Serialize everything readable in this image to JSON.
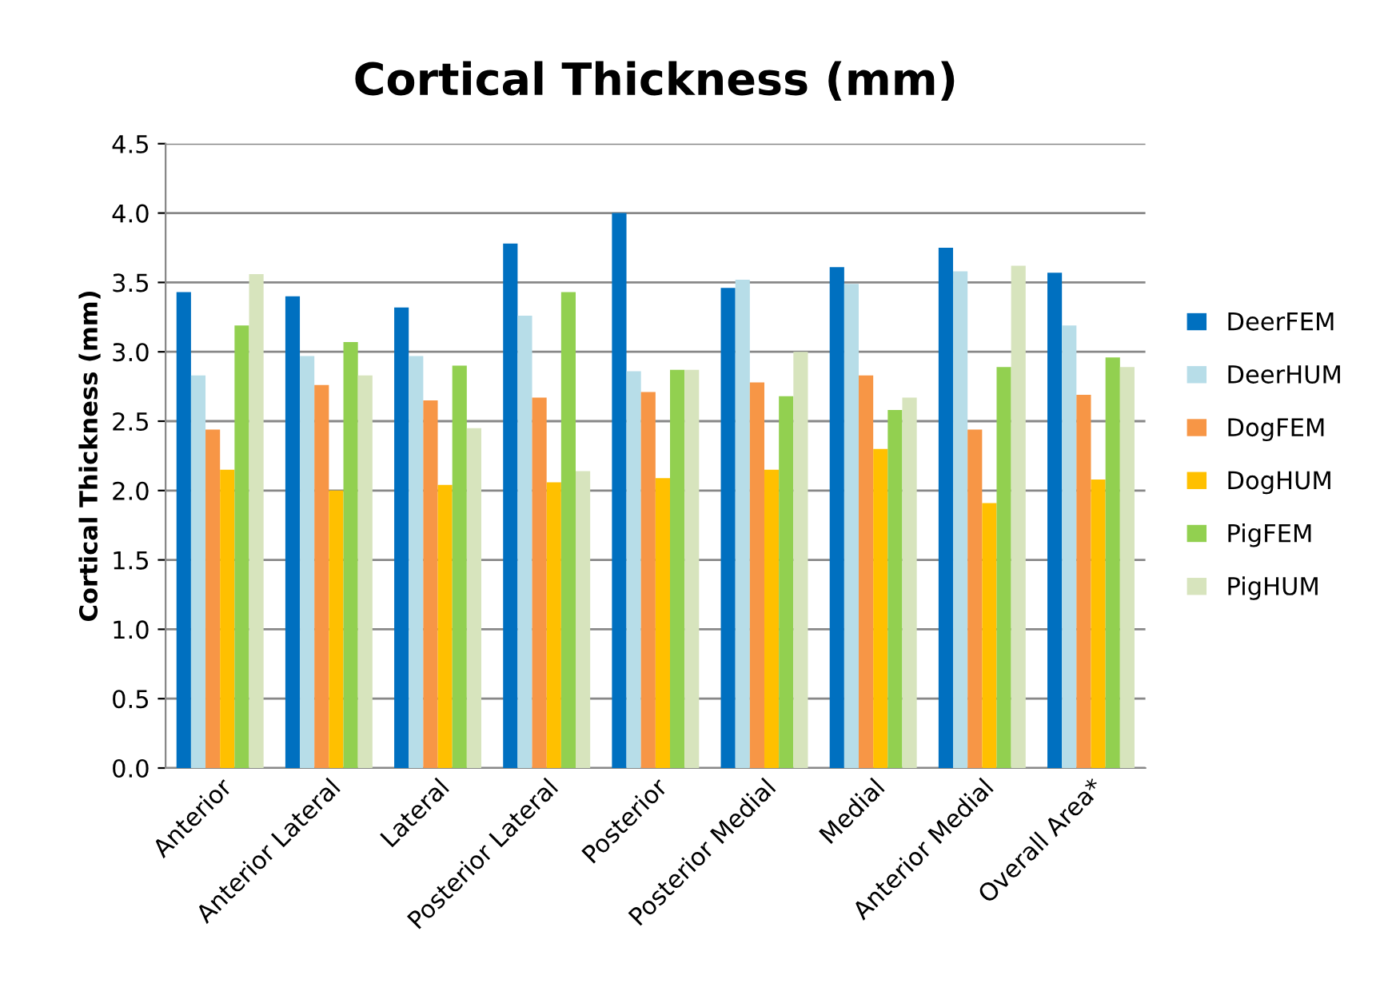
{
  "chart_data": {
    "type": "bar",
    "title": "Cortical Thickness (mm)",
    "ylabel": "Cortical Thickness (mm)",
    "categories": [
      "Anterior",
      "Anterior Lateral",
      "Lateral",
      "Posterior Lateral",
      "Posterior",
      "Posterior Medial",
      "Medial",
      "Anterior Medial",
      "Overall Area*"
    ],
    "series": [
      {
        "name": "DeerFEM",
        "color": "#0070c0",
        "values": [
          3.43,
          3.4,
          3.32,
          3.78,
          4.0,
          3.46,
          3.61,
          3.75,
          3.57
        ]
      },
      {
        "name": "DeerHUM",
        "color": "#b7dde8",
        "values": [
          2.83,
          2.97,
          2.97,
          3.26,
          2.86,
          3.52,
          3.49,
          3.58,
          3.19
        ]
      },
      {
        "name": "DogFEM",
        "color": "#f79646",
        "values": [
          2.44,
          2.76,
          2.65,
          2.67,
          2.71,
          2.78,
          2.83,
          2.44,
          2.69
        ]
      },
      {
        "name": "DogHUM",
        "color": "#ffc000",
        "values": [
          2.15,
          2.0,
          2.04,
          2.06,
          2.09,
          2.15,
          2.3,
          1.91,
          2.08
        ]
      },
      {
        "name": "PigFEM",
        "color": "#92d050",
        "values": [
          3.19,
          3.07,
          2.9,
          3.43,
          2.87,
          2.68,
          2.58,
          2.89,
          2.96
        ]
      },
      {
        "name": "PigHUM",
        "color": "#d7e4bd",
        "values": [
          3.56,
          2.83,
          2.45,
          2.14,
          2.87,
          3.0,
          2.67,
          3.62,
          2.89
        ]
      }
    ],
    "ylim": [
      0,
      4.5
    ],
    "yticks": [
      {
        "value": 0,
        "label": "0.0"
      },
      {
        "value": 0.5,
        "label": "0.5"
      },
      {
        "value": 1,
        "label": "1.0"
      },
      {
        "value": 1.5,
        "label": "1.5"
      },
      {
        "value": 2,
        "label": "2.0"
      },
      {
        "value": 2.5,
        "label": "2.5"
      },
      {
        "value": 3,
        "label": "3.0"
      },
      {
        "value": 3.5,
        "label": "3.5"
      },
      {
        "value": 4,
        "label": "4.0"
      },
      {
        "value": 4.5,
        "label": "4.5"
      }
    ],
    "grid": "y",
    "legend": "right"
  }
}
